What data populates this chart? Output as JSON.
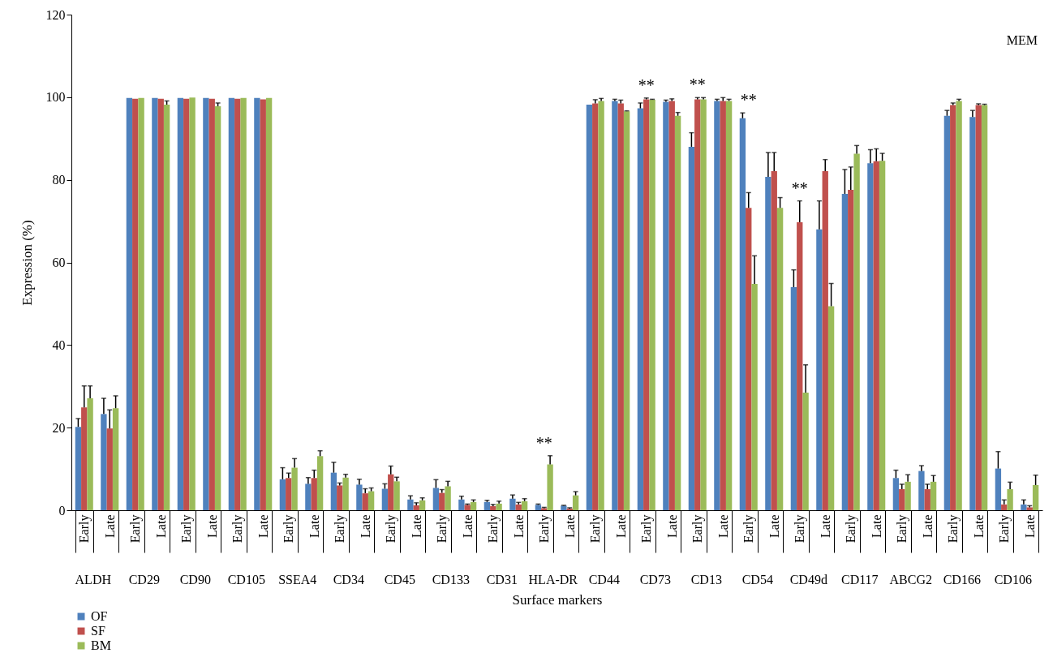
{
  "chart_data": {
    "type": "bar",
    "ylabel": "Expression (%)",
    "xlabel": "Surface markers",
    "categories": [
      "Early",
      "Late",
      "Early",
      "Late",
      "Early",
      "Late",
      "Early",
      "Late",
      "Early",
      "Late",
      "Early",
      "Late",
      "Early",
      "Late",
      "Early",
      "Late",
      "Early",
      "Late",
      "Early",
      "Late",
      "Early",
      "Late",
      "Early",
      "Late",
      "Early",
      "Late",
      "Early",
      "Late",
      "Early",
      "Late",
      "Early",
      "Late",
      "Early",
      "Late",
      "Early",
      "Late",
      "Early",
      "Late"
    ],
    "ylim": [
      0,
      120
    ],
    "yticks": [
      0,
      20,
      40,
      60,
      80,
      100,
      120
    ],
    "grid": false,
    "legend": "bottom left",
    "series": [
      {
        "name": "OF",
        "color": "#4f81bd",
        "values": [
          20.2,
          23.3,
          99.8,
          99.8,
          99.8,
          99.8,
          99.8,
          99.8,
          7.5,
          6.4,
          9.1,
          6.2,
          5.2,
          2.6,
          5.4,
          2.6,
          2.0,
          2.8,
          1.3,
          1.1,
          98.2,
          99.1,
          97.3,
          98.9,
          88.0,
          99.1,
          94.9,
          80.7,
          54.0,
          68.0,
          76.6,
          84.0,
          7.8,
          9.5,
          95.5,
          95.2,
          10.1,
          1.4
        ],
        "errors": [
          [
            20.2,
            22.2
          ],
          [
            23.3,
            27.1
          ],
          null,
          null,
          null,
          null,
          null,
          null,
          [
            7.5,
            10.3
          ],
          [
            6.4,
            7.9
          ],
          [
            9.1,
            11.6
          ],
          [
            6.2,
            7.5
          ],
          [
            5.2,
            6.4
          ],
          [
            2.6,
            3.5
          ],
          [
            5.4,
            7.4
          ],
          [
            2.6,
            3.4
          ],
          [
            2.0,
            2.4
          ],
          [
            2.8,
            3.7
          ],
          [
            1.3,
            1.5
          ],
          [
            1.1,
            1.2
          ],
          null,
          [
            99.1,
            99.5
          ],
          [
            97.3,
            98.6
          ],
          [
            98.9,
            99.3
          ],
          [
            88.0,
            91.4
          ],
          [
            99.1,
            99.5
          ],
          [
            94.9,
            96.2
          ],
          [
            80.7,
            86.6
          ],
          [
            54.0,
            58.2
          ],
          [
            68.0,
            74.9
          ],
          [
            76.6,
            82.5
          ],
          [
            84.0,
            87.3
          ],
          [
            7.8,
            9.7
          ],
          [
            9.5,
            10.8
          ],
          [
            95.5,
            96.8
          ],
          [
            95.2,
            96.8
          ],
          [
            10.1,
            14.2
          ],
          [
            1.4,
            2.5
          ]
        ]
      },
      {
        "name": "SF",
        "color": "#c0504d",
        "values": [
          24.9,
          19.8,
          99.6,
          99.6,
          99.6,
          99.6,
          99.6,
          99.5,
          7.8,
          7.8,
          6.0,
          4.1,
          8.7,
          1.2,
          4.2,
          1.3,
          1.0,
          1.4,
          0.5,
          0.4,
          98.5,
          98.5,
          99.5,
          99.1,
          99.5,
          99.1,
          73.2,
          82.1,
          69.7,
          82.1,
          77.6,
          84.5,
          5.1,
          5.1,
          98.1,
          98.1,
          1.4,
          0.7
        ],
        "errors": [
          [
            24.9,
            30.1
          ],
          [
            19.8,
            24.3
          ],
          null,
          null,
          null,
          null,
          null,
          null,
          [
            7.8,
            9.0
          ],
          [
            7.8,
            9.7
          ],
          [
            6.0,
            6.6
          ],
          [
            4.1,
            5.2
          ],
          [
            8.7,
            10.7
          ],
          [
            1.2,
            1.8
          ],
          [
            4.2,
            5.0
          ],
          [
            1.3,
            1.5
          ],
          [
            1.0,
            1.4
          ],
          [
            1.4,
            1.9
          ],
          [
            0.5,
            0.7
          ],
          [
            0.4,
            0.6
          ],
          [
            98.5,
            99.4
          ],
          [
            98.5,
            99.3
          ],
          [
            99.5,
            99.8
          ],
          [
            99.1,
            99.6
          ],
          [
            99.5,
            99.9
          ],
          [
            99.1,
            99.9
          ],
          [
            73.2,
            76.9
          ],
          [
            82.1,
            86.6
          ],
          [
            69.7,
            74.9
          ],
          [
            82.1,
            84.9
          ],
          [
            77.6,
            83.1
          ],
          [
            84.5,
            87.5
          ],
          [
            5.1,
            6.3
          ],
          [
            5.1,
            6.3
          ],
          [
            98.1,
            98.6
          ],
          [
            98.1,
            98.4
          ],
          [
            1.4,
            2.5
          ],
          [
            0.7,
            1.1
          ]
        ]
      },
      {
        "name": "BM",
        "color": "#9bbb59",
        "values": [
          27.1,
          24.7,
          99.8,
          98.2,
          99.9,
          97.8,
          99.8,
          99.8,
          10.3,
          13.1,
          7.9,
          4.6,
          7.0,
          2.4,
          5.8,
          2.0,
          1.6,
          2.2,
          11.1,
          3.6,
          99.1,
          96.6,
          99.4,
          95.5,
          99.5,
          99.1,
          54.8,
          73.2,
          28.5,
          49.4,
          86.3,
          84.6,
          6.9,
          6.9,
          99.1,
          98.1,
          5.1,
          6.1
        ],
        "errors": [
          [
            27.1,
            30.1
          ],
          [
            24.7,
            27.7
          ],
          null,
          [
            98.2,
            99.1
          ],
          null,
          [
            97.8,
            98.6
          ],
          null,
          null,
          [
            10.3,
            12.5
          ],
          [
            13.1,
            14.4
          ],
          [
            7.9,
            8.7
          ],
          [
            4.6,
            5.4
          ],
          [
            7.0,
            8.0
          ],
          [
            2.4,
            3.0
          ],
          [
            5.8,
            7.0
          ],
          [
            2.0,
            2.5
          ],
          [
            1.6,
            2.2
          ],
          [
            2.2,
            2.8
          ],
          [
            11.1,
            13.2
          ],
          [
            3.6,
            4.5
          ],
          [
            99.1,
            99.7
          ],
          [
            96.6,
            96.7
          ],
          [
            99.4,
            99.5
          ],
          [
            95.5,
            96.3
          ],
          [
            99.5,
            99.9
          ],
          [
            99.1,
            99.5
          ],
          [
            54.8,
            61.6
          ],
          [
            73.2,
            75.7
          ],
          [
            28.5,
            35.2
          ],
          [
            49.4,
            54.9
          ],
          [
            86.3,
            88.3
          ],
          [
            84.6,
            86.4
          ],
          [
            6.9,
            8.6
          ],
          [
            6.9,
            8.4
          ],
          [
            99.1,
            99.5
          ],
          [
            98.1,
            98.3
          ],
          [
            5.1,
            6.8
          ],
          [
            6.1,
            8.5
          ]
        ]
      }
    ],
    "annotations": [
      "MEM",
      "ALDH",
      "CD29",
      "CD90",
      "CD105",
      "SSEA4",
      "CD34",
      "CD45",
      "CD133",
      "CD31",
      "HLA-DR",
      {
        "text": "**"
      },
      "CD44",
      "CD73",
      {
        "text": "**"
      },
      "CD13",
      {
        "text": "**"
      },
      "CD54",
      {
        "text": "**"
      },
      "CD49d",
      {
        "text": "**"
      },
      "CD117",
      "ABCG2",
      "CD166",
      "CD106"
    ]
  }
}
